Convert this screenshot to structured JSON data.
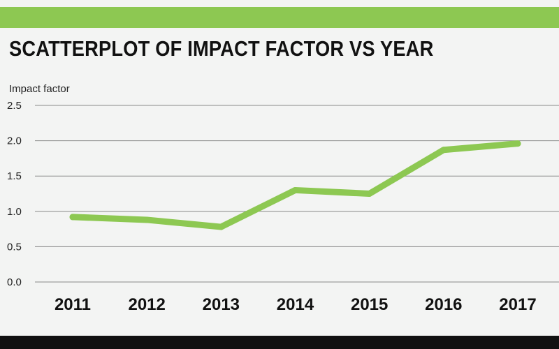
{
  "chart_data": {
    "type": "line",
    "title": "SCATTERPLOT OF IMPACT FACTOR VS YEAR",
    "xlabel": "",
    "ylabel": "Impact factor",
    "categories": [
      "2011",
      "2012",
      "2013",
      "2014",
      "2015",
      "2016",
      "2017"
    ],
    "series": [
      {
        "name": "Impact factor",
        "values": [
          0.92,
          0.88,
          0.78,
          1.3,
          1.25,
          1.87,
          1.96
        ]
      }
    ],
    "yticks": [
      "0.0",
      "0.5",
      "1.0",
      "1.5",
      "2.0",
      "2.5"
    ],
    "ylim": [
      0,
      2.5
    ],
    "grid": true,
    "line_color": "#8dc852",
    "accent_color": "#8dc852",
    "background_color": "#f3f4f3"
  }
}
